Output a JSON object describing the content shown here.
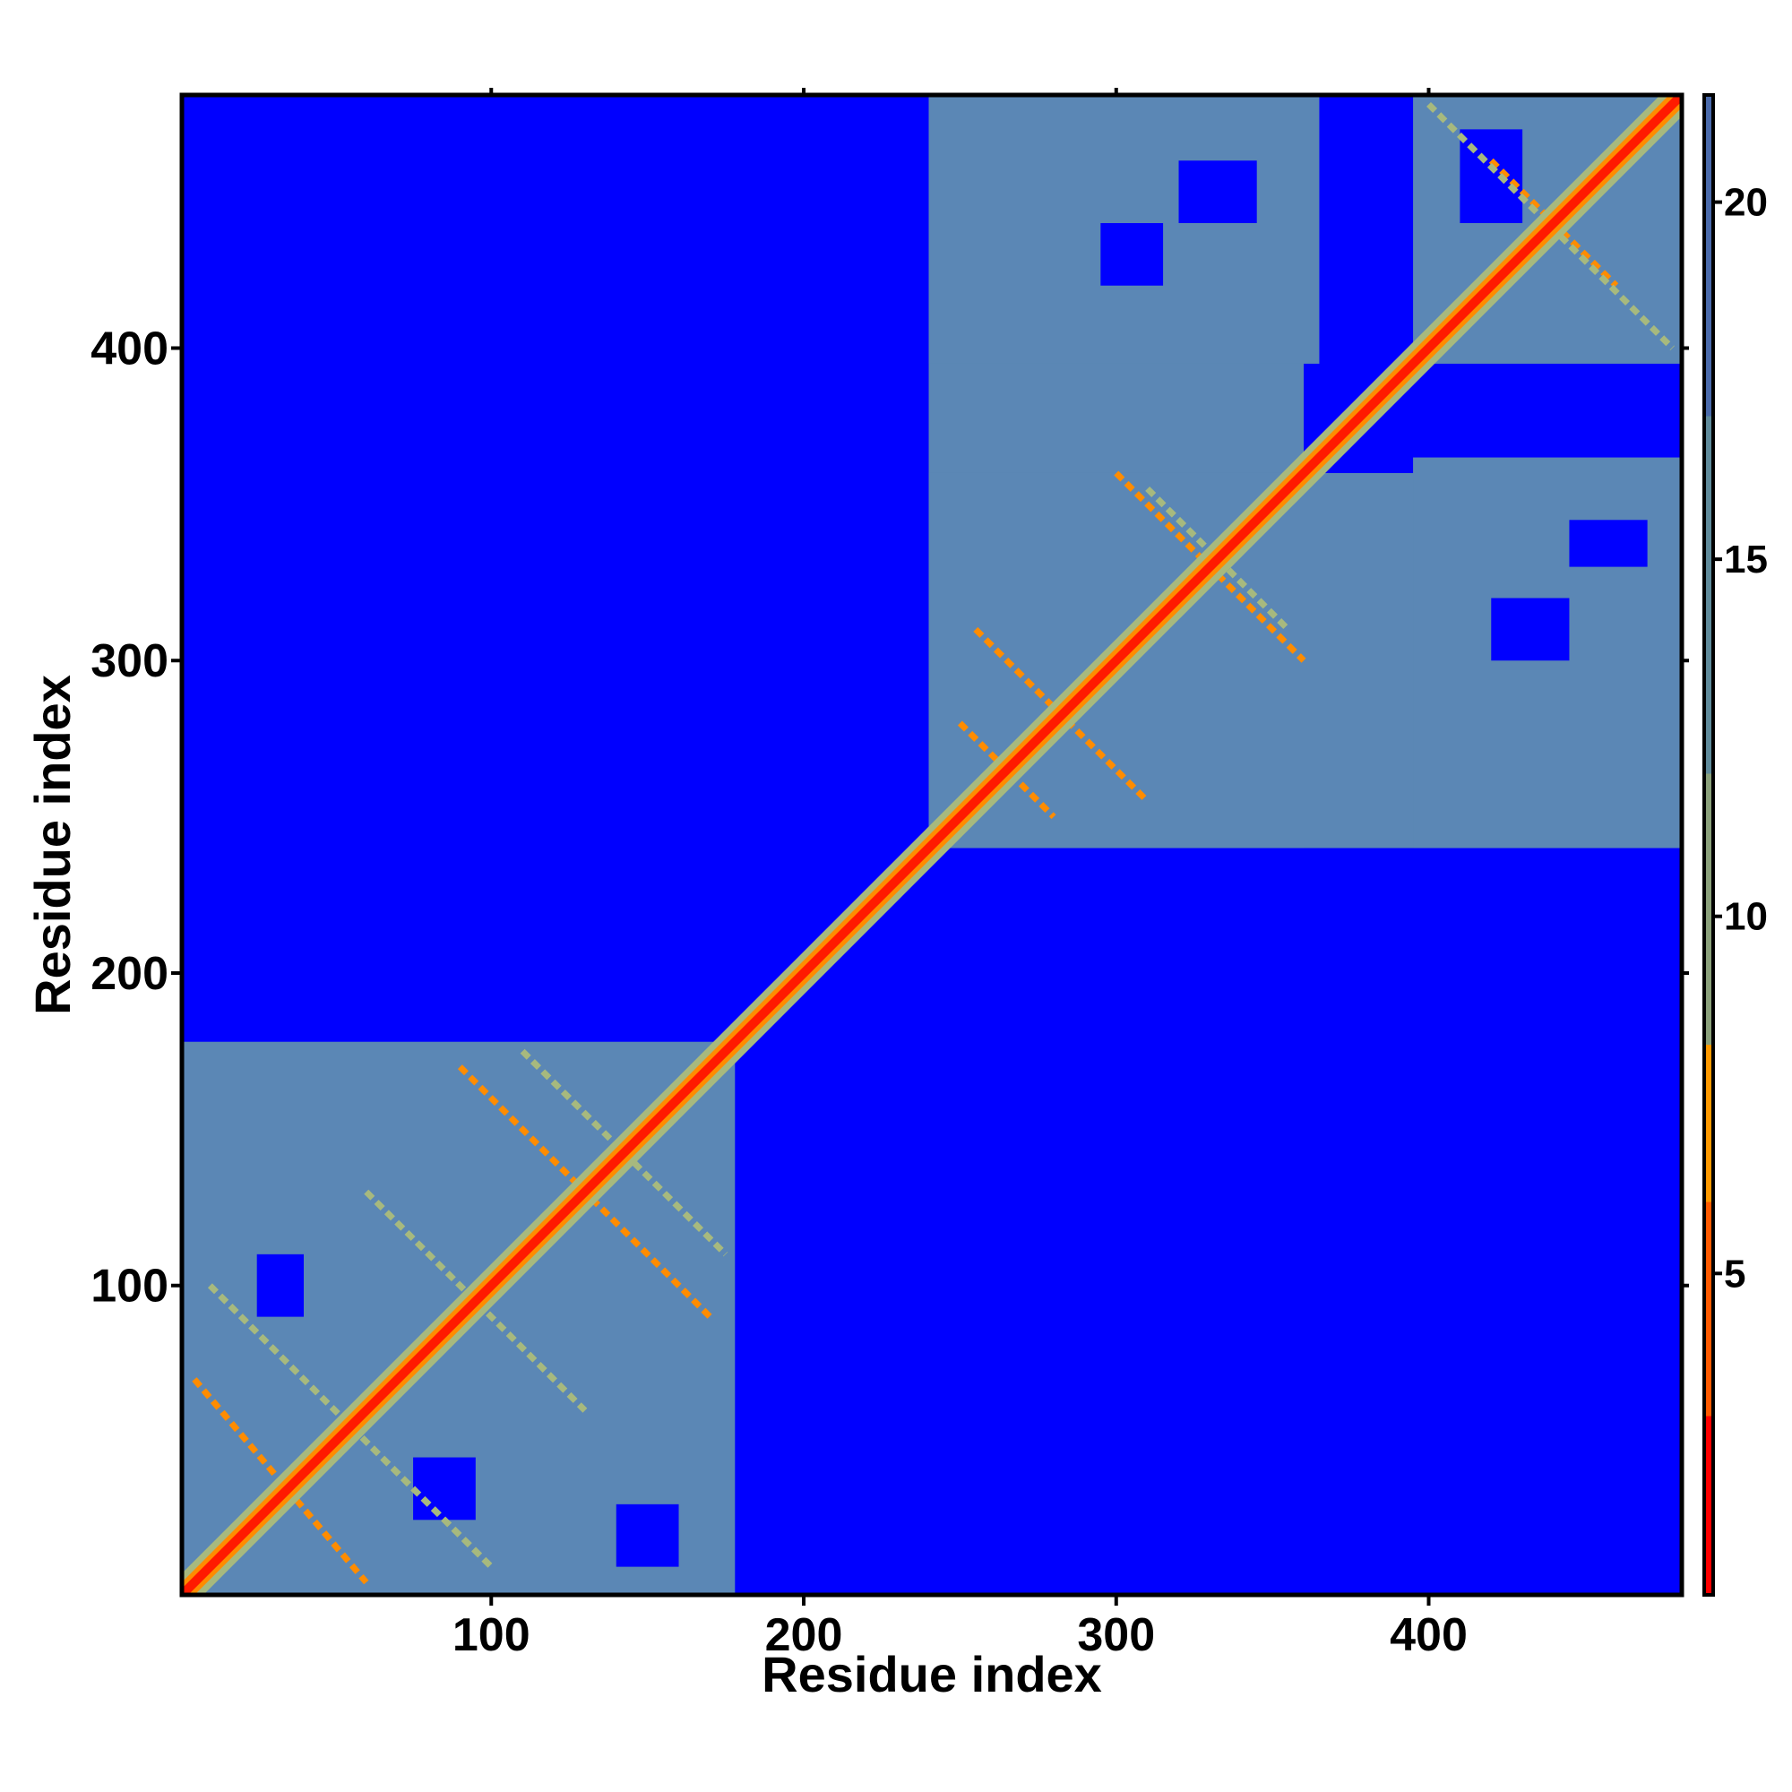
{
  "chart_data": {
    "type": "heatmap",
    "title": "",
    "xlabel": "Residue index",
    "ylabel": "Residue index",
    "xlim": [
      1,
      481
    ],
    "ylim": [
      1,
      481
    ],
    "x_ticks": [
      100,
      200,
      300,
      400
    ],
    "y_ticks": [
      100,
      200,
      300,
      400
    ],
    "x_tick_labels": [
      "100",
      "200",
      "300",
      "400"
    ],
    "y_tick_labels": [
      "100",
      "200",
      "300",
      "400"
    ],
    "grid": false,
    "legend": "colorbar-right",
    "colorbar": {
      "range": [
        0.5,
        21.5
      ],
      "ticks": [
        5,
        10,
        15,
        20
      ],
      "tick_labels": [
        "5",
        "10",
        "15",
        "20"
      ],
      "colors": [
        {
          "from": 0.5,
          "to": 3.0,
          "color": "#ff0000"
        },
        {
          "from": 3.0,
          "to": 6.0,
          "color": "#ff5a00"
        },
        {
          "from": 6.0,
          "to": 8.2,
          "color": "#ff9900"
        },
        {
          "from": 8.2,
          "to": 12.0,
          "color": "#8aa07a"
        },
        {
          "from": 12.0,
          "to": 17.0,
          "color": "#5f8a9a"
        },
        {
          "from": 17.0,
          "to": 21.5,
          "color": "#4a6aaa"
        }
      ]
    },
    "value_colors": {
      "background": "#0000ff",
      "contact_region": "#5b87b5",
      "close_contact": "#a7b97e",
      "near_contact": "#ff8c00",
      "diagonal": "#ff1a00"
    },
    "regions": [
      {
        "x": [
          1,
          178
        ],
        "y": [
          1,
          178
        ],
        "value": 16
      },
      {
        "x": [
          240,
          360
        ],
        "y": [
          240,
          481
        ],
        "value": 16
      },
      {
        "x": [
          240,
          481
        ],
        "y": [
          240,
          360
        ],
        "value": 16
      },
      {
        "x": [
          395,
          481
        ],
        "y": [
          395,
          481
        ],
        "value": 16
      },
      {
        "x": [
          395,
          481
        ],
        "y": [
          240,
          365
        ],
        "value": 16
      },
      {
        "x": [
          240,
          365
        ],
        "y": [
          395,
          481
        ],
        "value": 16
      }
    ],
    "voids": [
      {
        "x": [
          25,
          40
        ],
        "y": [
          90,
          110
        ]
      },
      {
        "x": [
          75,
          95
        ],
        "y": [
          25,
          45
        ]
      },
      {
        "x": [
          140,
          160
        ],
        "y": [
          10,
          30
        ]
      },
      {
        "x": [
          295,
          315
        ],
        "y": [
          420,
          440
        ]
      },
      {
        "x": [
          320,
          345
        ],
        "y": [
          440,
          460
        ]
      },
      {
        "x": [
          420,
          445
        ],
        "y": [
          300,
          320
        ]
      },
      {
        "x": [
          445,
          470
        ],
        "y": [
          330,
          345
        ]
      },
      {
        "x": [
          410,
          430
        ],
        "y": [
          440,
          470
        ]
      }
    ],
    "contact_lines": [
      {
        "from": [
          5,
          70
        ],
        "to": [
          60,
          5
        ],
        "value": 7
      },
      {
        "from": [
          10,
          100
        ],
        "to": [
          100,
          10
        ],
        "value": 9
      },
      {
        "from": [
          90,
          170
        ],
        "to": [
          170,
          90
        ],
        "value": 7
      },
      {
        "from": [
          110,
          175
        ],
        "to": [
          175,
          110
        ],
        "value": 9
      },
      {
        "from": [
          60,
          130
        ],
        "to": [
          130,
          60
        ],
        "value": 9
      },
      {
        "from": [
          250,
          280
        ],
        "to": [
          280,
          250
        ],
        "value": 7
      },
      {
        "from": [
          255,
          310
        ],
        "to": [
          310,
          255
        ],
        "value": 7
      },
      {
        "from": [
          300,
          360
        ],
        "to": [
          360,
          300
        ],
        "value": 7
      },
      {
        "from": [
          310,
          355
        ],
        "to": [
          355,
          310
        ],
        "value": 9
      },
      {
        "from": [
          420,
          460
        ],
        "to": [
          460,
          420
        ],
        "value": 7
      },
      {
        "from": [
          400,
          478
        ],
        "to": [
          478,
          400
        ],
        "value": 9
      }
    ],
    "diagonal": {
      "from": 1,
      "to": 481,
      "value": 1
    }
  }
}
